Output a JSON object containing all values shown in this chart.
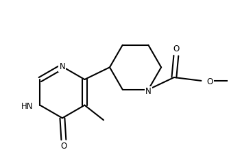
{
  "bg_color": "#ffffff",
  "line_color": "#000000",
  "line_width": 1.5,
  "font_size": 8.5,
  "figsize": [
    3.34,
    2.38
  ],
  "dpi": 100,
  "xlim": [
    0,
    334
  ],
  "ylim": [
    0,
    238
  ]
}
